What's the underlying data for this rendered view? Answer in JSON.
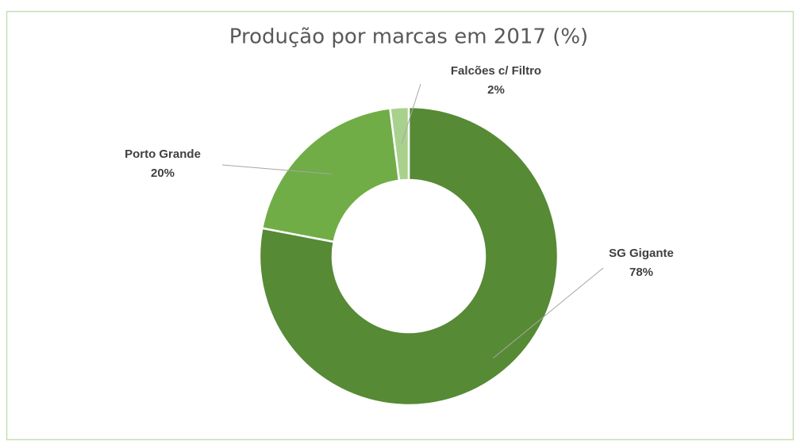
{
  "chart_data": {
    "type": "pie",
    "title": "Produção por marcas em 2017 (%)",
    "categories": [
      "SG Gigante",
      "Porto Grande",
      "Falcões c/ Filtro"
    ],
    "values": [
      78,
      20,
      2
    ],
    "value_labels": [
      "78%",
      "20%",
      "2%"
    ],
    "colors": [
      "#568a35",
      "#70ad47",
      "#a9d18e"
    ]
  }
}
